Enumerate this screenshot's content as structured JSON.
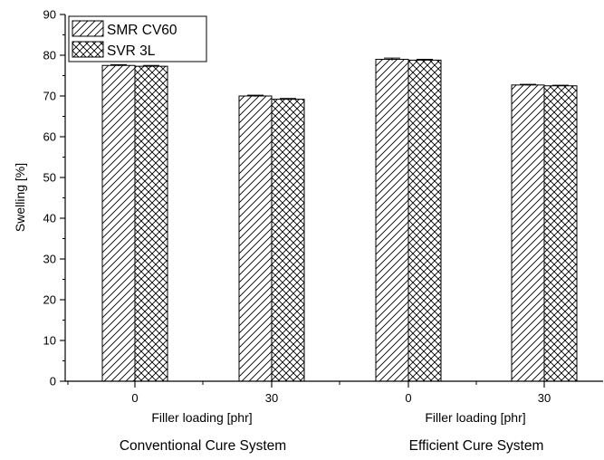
{
  "chart_data": {
    "type": "bar",
    "title": "",
    "ylabel": "Swelling [%]",
    "ylim": [
      0,
      90
    ],
    "yticks": [
      "0",
      "10",
      "20",
      "30",
      "40",
      "50",
      "60",
      "70",
      "80",
      "90"
    ],
    "categories": [
      "0",
      "30",
      "0",
      "30"
    ],
    "xlabels": [
      "Filler loading [phr]",
      "Filler loading [phr]"
    ],
    "groups": [
      "Conventional Cure System",
      "Efficient Cure System"
    ],
    "series": [
      {
        "name": "SMR CV60",
        "pattern": "diagonal-hatch",
        "values": [
          77.5,
          70.0,
          79.0,
          72.7
        ],
        "errors": [
          0.2,
          0.2,
          0.3,
          0.15
        ]
      },
      {
        "name": "SVR 3L",
        "pattern": "cross-hatch",
        "values": [
          77.3,
          69.2,
          78.8,
          72.5
        ],
        "errors": [
          0.2,
          0.2,
          0.2,
          0.15
        ]
      }
    ],
    "legend_position": "top-left",
    "grid": false,
    "colors": {
      "stroke": "#000000",
      "background": "#ffffff"
    }
  }
}
